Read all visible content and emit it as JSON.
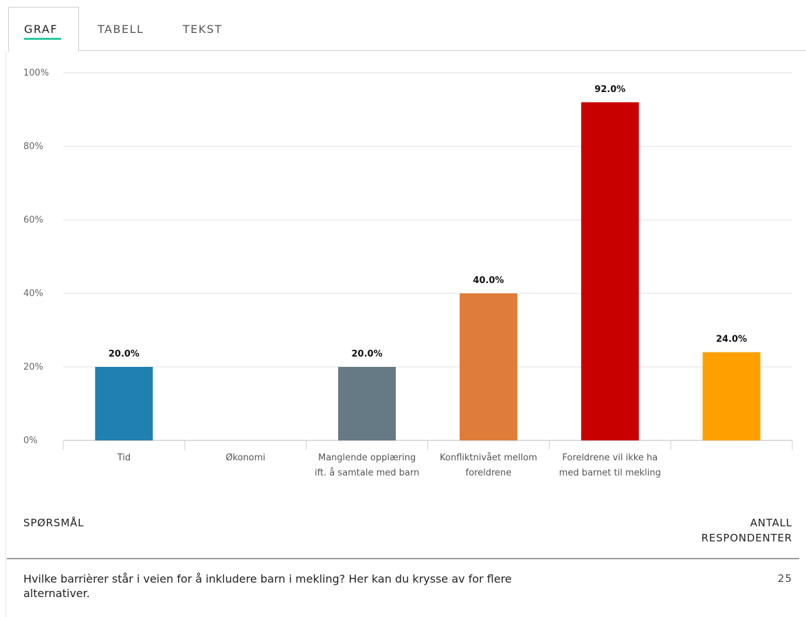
{
  "tabs": [
    {
      "label": "GRAF",
      "active": true
    },
    {
      "label": "TABELL",
      "active": false
    },
    {
      "label": "TEKST",
      "active": false
    }
  ],
  "colors": {
    "tab_accent": "#2cc8a0",
    "grid": "#e2e2e2"
  },
  "chart_data": {
    "type": "bar",
    "categories": [
      [
        "Tid"
      ],
      [
        "Økonomi"
      ],
      [
        "Manglende opplæring",
        "ift. å samtale med barn"
      ],
      [
        "Konfliktnivået mellom",
        "foreldrene"
      ],
      [
        "Foreldrene vil ikke ha",
        "med barnet til mekling"
      ],
      [
        ""
      ]
    ],
    "values": [
      20.0,
      0.0,
      20.0,
      40.0,
      92.0,
      24.0
    ],
    "value_labels": [
      "20.0%",
      "",
      "20.0%",
      "40.0%",
      "92.0%",
      "24.0%"
    ],
    "colors": [
      "#2080b0",
      "#2080b0",
      "#667a86",
      "#e07c3a",
      "#c80000",
      "#ff9f00"
    ],
    "yticks": [
      "0%",
      "20%",
      "40%",
      "60%",
      "80%",
      "100%"
    ],
    "ylim": [
      0,
      100
    ],
    "grid": true
  },
  "footer": {
    "left_label": "SPØRSMÅL",
    "right_label_line1": "ANTALL",
    "right_label_line2": "RESPONDENTER",
    "question": "Hvilke barrièrer står i veien for å inkludere barn i mekling? Her kan du krysse av for flere alternativer.",
    "count": "25"
  }
}
